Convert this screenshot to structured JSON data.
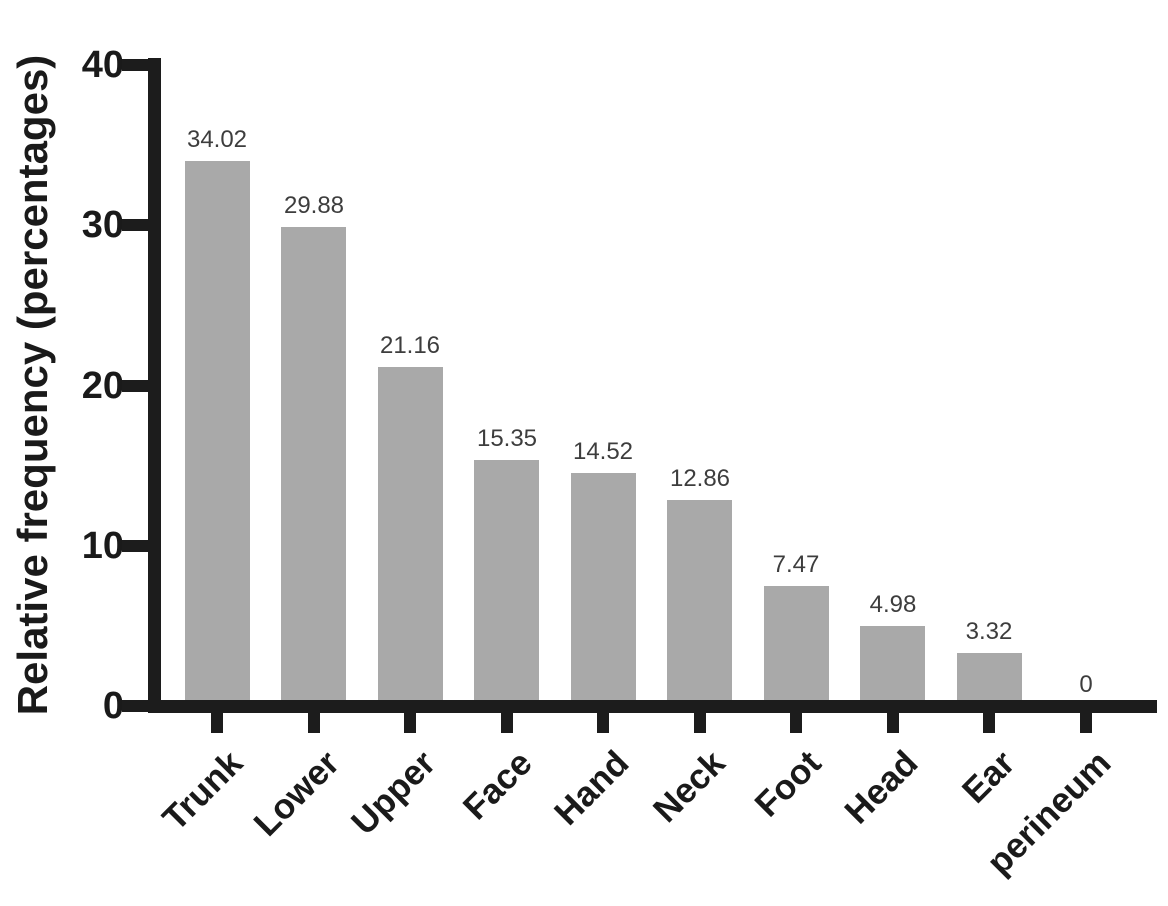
{
  "chart_data": {
    "type": "bar",
    "title": "",
    "xlabel": "",
    "ylabel": "Relative frequency (percentages)",
    "categories": [
      "Trunk",
      "Lower",
      "Upper",
      "Face",
      "Hand",
      "Neck",
      "Foot",
      "Head",
      "Ear",
      "perineum"
    ],
    "values": [
      34.02,
      29.88,
      21.16,
      15.35,
      14.52,
      12.86,
      7.47,
      4.98,
      3.32,
      0
    ],
    "value_labels": [
      "34.02",
      "29.88",
      "21.16",
      "15.35",
      "14.52",
      "12.86",
      "7.47",
      "4.98",
      "3.32",
      "0"
    ],
    "y_ticks": [
      0,
      10,
      20,
      30,
      40
    ],
    "y_tick_labels": [
      "0",
      "10",
      "20",
      "30",
      "40"
    ],
    "ylim": [
      0,
      40
    ],
    "grid": false,
    "legend": null,
    "bar_color": "#a9a9a9",
    "axis_color": "#1c1c1c",
    "value_label_color": "#3d3d3d"
  }
}
